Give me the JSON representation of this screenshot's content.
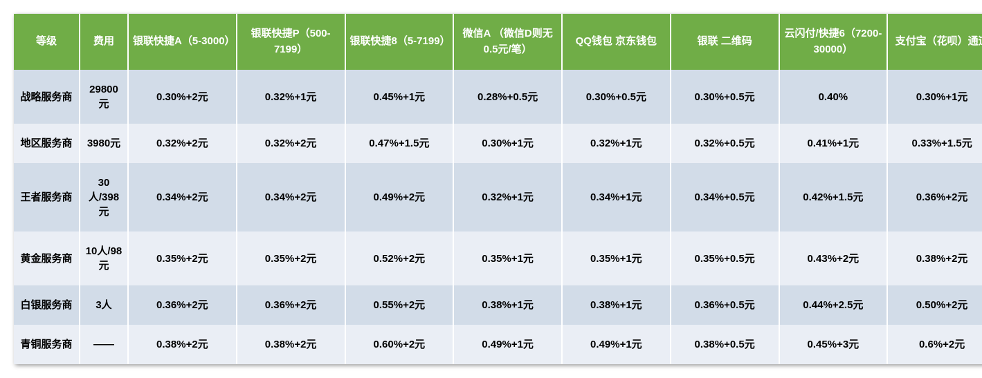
{
  "table": {
    "header_bg": "#70ad47",
    "header_fg": "#ffffff",
    "row_odd_bg": "#d2dce8",
    "row_even_bg": "#eaeef5",
    "cell_fg": "#000000",
    "header_fontsize": 15,
    "cell_fontsize": 15,
    "columns": [
      "等级",
      "费用",
      "银联快捷A（5-3000）",
      "银联快捷P（500-7199）",
      "银联快捷8（5-7199）",
      "微信A\n（微信D则无0.5元/笔）",
      "QQ钱包\n京东钱包",
      "银联\n二维码",
      "云闪付/快捷6（7200-30000）",
      "支付宝（花呗）通道"
    ],
    "rows": [
      [
        "战略服务商",
        "29800元",
        "0.30%+2元",
        "0.32%+1元",
        "0.45%+1元",
        "0.28%+0.5元",
        "0.30%+0.5元",
        "0.30%+0.5元",
        "0.40%",
        "0.30%+1元"
      ],
      [
        "地区服务商",
        "3980元",
        "0.32%+2元",
        "0.32%+2元",
        "0.47%+1.5元",
        "0.30%+1元",
        "0.32%+1元",
        "0.32%+0.5元",
        "0.41%+1元",
        "0.33%+1.5元"
      ],
      [
        "王者服务商",
        "30人/398元",
        "0.34%+2元",
        "0.34%+2元",
        "0.49%+2元",
        "0.32%+1元",
        "0.34%+1元",
        "0.34%+0.5元",
        "0.42%+1.5元",
        "0.36%+2元"
      ],
      [
        "黄金服务商",
        "10人/98元",
        "0.35%+2元",
        "0.35%+2元",
        "0.52%+2元",
        "0.35%+1元",
        "0.35%+1元",
        "0.35%+0.5元",
        "0.43%+2元",
        "0.38%+2元"
      ],
      [
        "白银服务商",
        "3人",
        "0.36%+2元",
        "0.36%+2元",
        "0.55%+2元",
        "0.38%+1元",
        "0.38%+1元",
        "0.36%+0.5元",
        "0.44%+2.5元",
        "0.50%+2元"
      ],
      [
        "青铜服务商",
        "——",
        "0.38%+2元",
        "0.38%+2元",
        "0.60%+2元",
        "0.49%+1元",
        "0.49%+1元",
        "0.38%+0.5元",
        "0.45%+3元",
        "0.6%+2元"
      ]
    ]
  }
}
